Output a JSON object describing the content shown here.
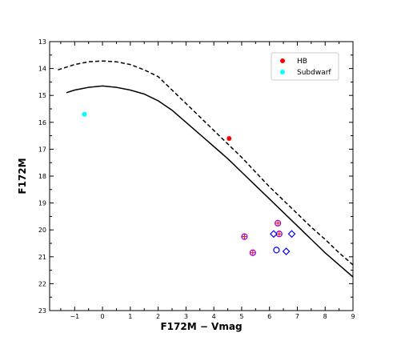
{
  "chart_data": {
    "type": "scatter",
    "title": "",
    "xlabel": "F172M − Vmag",
    "ylabel": "F172M",
    "xlim": [
      -1.9,
      9
    ],
    "ylim": [
      23,
      13
    ],
    "y_inverted": true,
    "xticks": [
      -1,
      0,
      1,
      2,
      3,
      4,
      5,
      6,
      7,
      8,
      9
    ],
    "xtick_labels": [
      "−1",
      "0",
      "1",
      "2",
      "3",
      "4",
      "5",
      "6",
      "7",
      "8",
      "9"
    ],
    "yticks": [
      13,
      14,
      15,
      16,
      17,
      18,
      19,
      20,
      21,
      22,
      23
    ],
    "ytick_labels": [
      "13",
      "14",
      "15",
      "16",
      "17",
      "18",
      "19",
      "20",
      "21",
      "22",
      "23"
    ],
    "grid": false,
    "legend_position": "top-right",
    "legend": [
      {
        "label": "HB",
        "color": "#ff0000",
        "marker": "circle"
      },
      {
        "label": "Subdwarf",
        "color": "#00ffff",
        "marker": "circle"
      }
    ],
    "series": [
      {
        "name": "HB",
        "color": "#ff0000",
        "marker": "filled-circle",
        "points": [
          {
            "x": 4.55,
            "y": 16.6
          }
        ]
      },
      {
        "name": "Subdwarf",
        "color": "#00ffff",
        "marker": "filled-circle",
        "points": [
          {
            "x": -0.65,
            "y": 15.7
          }
        ]
      },
      {
        "color": "#9400d3",
        "marker": "circle-plus",
        "points": [
          {
            "x": 5.1,
            "y": 20.25
          },
          {
            "x": 5.4,
            "y": 20.85
          },
          {
            "x": 6.3,
            "y": 19.75
          },
          {
            "x": 6.35,
            "y": 20.15
          }
        ]
      },
      {
        "color": "#0000ff",
        "marker": "open-diamond",
        "points": [
          {
            "x": 6.15,
            "y": 20.15
          },
          {
            "x": 6.6,
            "y": 20.8
          },
          {
            "x": 6.8,
            "y": 20.15
          }
        ]
      },
      {
        "color": "#0000ff",
        "marker": "open-circle",
        "points": [
          {
            "x": 6.25,
            "y": 20.75
          }
        ]
      }
    ],
    "curves": [
      {
        "style": "dashed",
        "color": "#000000",
        "x": [
          -1.6,
          -1.0,
          -0.5,
          0.0,
          0.5,
          1.0,
          1.5,
          2.0,
          2.5,
          3.0,
          3.5,
          4.0,
          4.5,
          5.0,
          5.5,
          6.0,
          6.5,
          7.0,
          7.5,
          8.0,
          8.5,
          9.0
        ],
        "y": [
          14.05,
          13.85,
          13.75,
          13.72,
          13.75,
          13.85,
          14.05,
          14.3,
          14.8,
          15.3,
          15.8,
          16.3,
          16.8,
          17.3,
          17.85,
          18.4,
          18.9,
          19.4,
          19.9,
          20.35,
          20.85,
          21.3
        ]
      },
      {
        "style": "solid",
        "color": "#000000",
        "x": [
          -1.3,
          -1.0,
          -0.5,
          0.0,
          0.5,
          1.0,
          1.5,
          2.0,
          2.5,
          3.0,
          3.5,
          4.0,
          4.5,
          5.0,
          5.5,
          6.0,
          6.5,
          7.0,
          7.5,
          8.0,
          8.5,
          9.0
        ],
        "y": [
          14.9,
          14.8,
          14.7,
          14.65,
          14.7,
          14.8,
          14.95,
          15.2,
          15.55,
          16.0,
          16.45,
          16.9,
          17.35,
          17.85,
          18.35,
          18.85,
          19.35,
          19.85,
          20.35,
          20.85,
          21.3,
          21.75
        ]
      }
    ]
  }
}
